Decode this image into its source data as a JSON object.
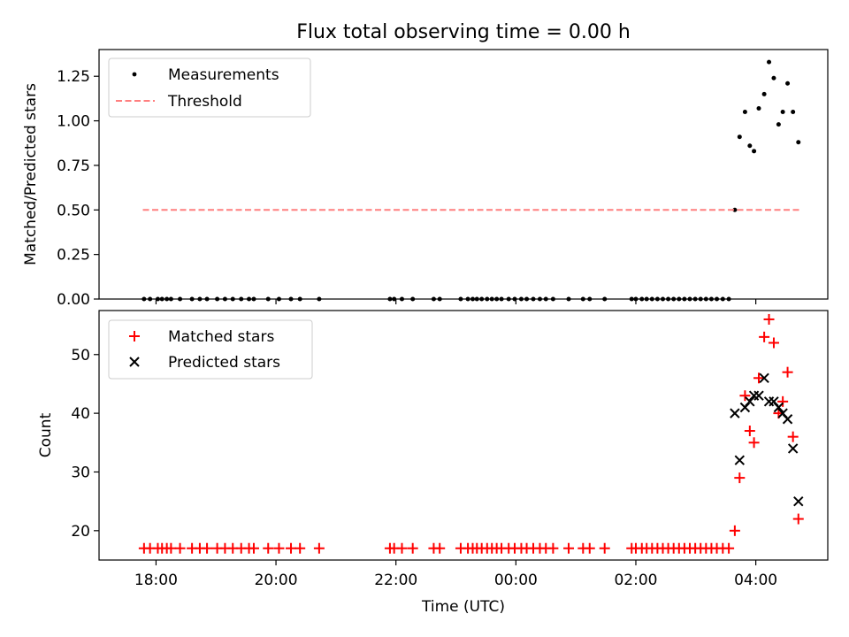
{
  "chart_data": [
    {
      "type": "scatter",
      "title": "Flux total observing time = 0.00 h",
      "ylabel": "Matched/Predicted stars",
      "xlabel": "",
      "ylim": [
        0,
        1.4
      ],
      "yticks": [
        "0.00",
        "0.25",
        "0.50",
        "0.75",
        "1.00",
        "1.25"
      ],
      "ytick_values": [
        0,
        0.25,
        0.5,
        0.75,
        1.0,
        1.25
      ],
      "legend": "top-left",
      "series": [
        {
          "name": "Measurements",
          "color": "#000000",
          "marker": "dot",
          "points": [
            [
              -6.2,
              0
            ],
            [
              -6.1,
              0
            ],
            [
              -5.97,
              0
            ],
            [
              -5.9,
              0
            ],
            [
              -5.82,
              0
            ],
            [
              -5.75,
              0
            ],
            [
              -5.6,
              0
            ],
            [
              -5.4,
              0
            ],
            [
              -5.27,
              0
            ],
            [
              -5.15,
              0
            ],
            [
              -4.98,
              0
            ],
            [
              -4.85,
              0
            ],
            [
              -4.72,
              0
            ],
            [
              -4.58,
              0
            ],
            [
              -4.45,
              0
            ],
            [
              -4.37,
              0
            ],
            [
              -4.13,
              0
            ],
            [
              -3.95,
              0
            ],
            [
              -3.75,
              0
            ],
            [
              -3.6,
              0
            ],
            [
              -3.28,
              0
            ],
            [
              -2.1,
              0
            ],
            [
              -2.03,
              0
            ],
            [
              -1.9,
              0
            ],
            [
              -1.72,
              0
            ],
            [
              -1.37,
              0
            ],
            [
              -1.27,
              0
            ],
            [
              -0.92,
              0
            ],
            [
              -0.8,
              0
            ],
            [
              -0.72,
              0
            ],
            [
              -0.65,
              0
            ],
            [
              -0.57,
              0
            ],
            [
              -0.48,
              0
            ],
            [
              -0.4,
              0
            ],
            [
              -0.32,
              0
            ],
            [
              -0.24,
              0
            ],
            [
              -0.12,
              0
            ],
            [
              -0.02,
              0
            ],
            [
              0.09,
              0
            ],
            [
              0.18,
              0
            ],
            [
              0.29,
              0
            ],
            [
              0.4,
              0
            ],
            [
              0.5,
              0
            ],
            [
              0.62,
              0
            ],
            [
              0.88,
              0
            ],
            [
              1.12,
              0
            ],
            [
              1.23,
              0
            ],
            [
              1.48,
              0
            ],
            [
              1.93,
              0
            ],
            [
              2.0,
              0
            ],
            [
              2.1,
              0
            ],
            [
              2.18,
              0
            ],
            [
              2.27,
              0
            ],
            [
              2.36,
              0
            ],
            [
              2.45,
              0
            ],
            [
              2.54,
              0
            ],
            [
              2.63,
              0
            ],
            [
              2.72,
              0
            ],
            [
              2.81,
              0
            ],
            [
              2.9,
              0
            ],
            [
              2.99,
              0
            ],
            [
              3.08,
              0
            ],
            [
              3.17,
              0
            ],
            [
              3.26,
              0
            ],
            [
              3.35,
              0
            ],
            [
              3.45,
              0
            ],
            [
              3.55,
              0
            ],
            [
              3.65,
              0.5
            ],
            [
              3.73,
              0.91
            ],
            [
              3.82,
              1.05
            ],
            [
              3.9,
              0.86
            ],
            [
              3.97,
              0.83
            ],
            [
              4.05,
              1.07
            ],
            [
              4.14,
              1.15
            ],
            [
              4.22,
              1.33
            ],
            [
              4.3,
              1.24
            ],
            [
              4.38,
              0.98
            ],
            [
              4.45,
              1.05
            ],
            [
              4.53,
              1.21
            ],
            [
              4.62,
              1.05
            ],
            [
              4.71,
              0.88
            ]
          ]
        },
        {
          "name": "Threshold",
          "color": "#ff7f7f",
          "style": "dashed",
          "points": [
            [
              -6.22,
              0.5
            ],
            [
              4.75,
              0.5
            ]
          ]
        }
      ]
    },
    {
      "type": "scatter",
      "title": "",
      "ylabel": "Count",
      "xlabel": "Time (UTC)",
      "ylim": [
        15,
        57.5
      ],
      "yticks": [
        "20",
        "30",
        "40",
        "50"
      ],
      "ytick_values": [
        20,
        30,
        40,
        50
      ],
      "xlim": [
        -6.95,
        5.2
      ],
      "xticks": [
        "18:00",
        "20:00",
        "22:00",
        "00:00",
        "02:00",
        "04:00"
      ],
      "xtick_values": [
        -6,
        -4,
        -2,
        0,
        2,
        4
      ],
      "legend": "top-left",
      "series": [
        {
          "name": "Matched stars",
          "color": "#ff0000",
          "marker": "plus",
          "points": [
            [
              -6.2,
              17
            ],
            [
              -6.1,
              17
            ],
            [
              -5.97,
              17
            ],
            [
              -5.9,
              17
            ],
            [
              -5.82,
              17
            ],
            [
              -5.75,
              17
            ],
            [
              -5.6,
              17
            ],
            [
              -5.4,
              17
            ],
            [
              -5.27,
              17
            ],
            [
              -5.15,
              17
            ],
            [
              -4.98,
              17
            ],
            [
              -4.85,
              17
            ],
            [
              -4.72,
              17
            ],
            [
              -4.58,
              17
            ],
            [
              -4.45,
              17
            ],
            [
              -4.37,
              17
            ],
            [
              -4.13,
              17
            ],
            [
              -3.95,
              17
            ],
            [
              -3.75,
              17
            ],
            [
              -3.6,
              17
            ],
            [
              -3.28,
              17
            ],
            [
              -2.1,
              17
            ],
            [
              -2.03,
              17
            ],
            [
              -1.9,
              17
            ],
            [
              -1.72,
              17
            ],
            [
              -1.37,
              17
            ],
            [
              -1.27,
              17
            ],
            [
              -0.92,
              17
            ],
            [
              -0.8,
              17
            ],
            [
              -0.72,
              17
            ],
            [
              -0.65,
              17
            ],
            [
              -0.57,
              17
            ],
            [
              -0.48,
              17
            ],
            [
              -0.4,
              17
            ],
            [
              -0.32,
              17
            ],
            [
              -0.24,
              17
            ],
            [
              -0.12,
              17
            ],
            [
              -0.02,
              17
            ],
            [
              0.09,
              17
            ],
            [
              0.18,
              17
            ],
            [
              0.29,
              17
            ],
            [
              0.4,
              17
            ],
            [
              0.5,
              17
            ],
            [
              0.62,
              17
            ],
            [
              0.88,
              17
            ],
            [
              1.12,
              17
            ],
            [
              1.23,
              17
            ],
            [
              1.48,
              17
            ],
            [
              1.93,
              17
            ],
            [
              2.0,
              17
            ],
            [
              2.1,
              17
            ],
            [
              2.18,
              17
            ],
            [
              2.27,
              17
            ],
            [
              2.36,
              17
            ],
            [
              2.45,
              17
            ],
            [
              2.54,
              17
            ],
            [
              2.63,
              17
            ],
            [
              2.72,
              17
            ],
            [
              2.81,
              17
            ],
            [
              2.9,
              17
            ],
            [
              2.99,
              17
            ],
            [
              3.08,
              17
            ],
            [
              3.17,
              17
            ],
            [
              3.26,
              17
            ],
            [
              3.35,
              17
            ],
            [
              3.45,
              17
            ],
            [
              3.55,
              17
            ],
            [
              3.65,
              20
            ],
            [
              3.73,
              29
            ],
            [
              3.82,
              43
            ],
            [
              3.9,
              37
            ],
            [
              3.97,
              35
            ],
            [
              4.05,
              46
            ],
            [
              4.14,
              53
            ],
            [
              4.22,
              56
            ],
            [
              4.3,
              52
            ],
            [
              4.38,
              40
            ],
            [
              4.45,
              42
            ],
            [
              4.53,
              47
            ],
            [
              4.62,
              36
            ],
            [
              4.71,
              22
            ]
          ]
        },
        {
          "name": "Predicted stars",
          "color": "#000000",
          "marker": "x",
          "points": [
            [
              3.65,
              40
            ],
            [
              3.73,
              32
            ],
            [
              3.82,
              41
            ],
            [
              3.9,
              42
            ],
            [
              3.97,
              43
            ],
            [
              4.05,
              43
            ],
            [
              4.14,
              46
            ],
            [
              4.22,
              42
            ],
            [
              4.3,
              42
            ],
            [
              4.38,
              41
            ],
            [
              4.45,
              40
            ],
            [
              4.53,
              39
            ],
            [
              4.62,
              34
            ],
            [
              4.71,
              25
            ]
          ]
        }
      ]
    }
  ]
}
